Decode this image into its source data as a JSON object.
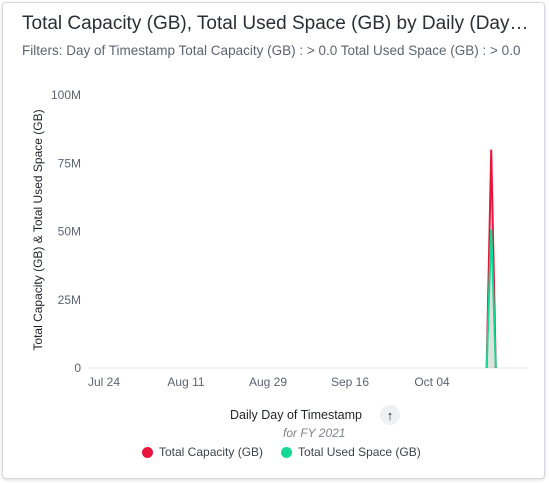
{
  "title": "Total Capacity (GB), Total Used Space (GB) by Daily (Day of Timestamp)",
  "filters": "Filters: Day of Timestamp Total Capacity (GB) : > 0.0 Total Used Space (GB) : > 0.0",
  "ylabel": "Total Capacity (GB) & Total Used Space (GB)",
  "xlabel": "Daily Day of Timestamp",
  "xsub": "for FY 2021",
  "sort_icon": "arrow-up-icon",
  "colors": {
    "capacity": "#e8163c",
    "used": "#13d994"
  },
  "chart_data": {
    "type": "line",
    "title": "Total Capacity (GB), Total Used Space (GB) by Daily (Day of Timestamp)",
    "xlabel": "Daily Day of Timestamp",
    "ylabel": "Total Capacity (GB) & Total Used Space (GB)",
    "x_ticks": [
      "Jul 24",
      "Aug 11",
      "Aug 29",
      "Sep 16",
      "Oct 04"
    ],
    "y_ticks": [
      "0",
      "25M",
      "50M",
      "75M",
      "100M"
    ],
    "ylim": [
      0,
      100000000
    ],
    "x": [
      "2021-10-16",
      "2021-10-17",
      "2021-10-18"
    ],
    "series": [
      {
        "name": "Total Capacity (GB)",
        "color": "#e8163c",
        "values": [
          0,
          80000000,
          0
        ]
      },
      {
        "name": "Total Used Space (GB)",
        "color": "#13d994",
        "values": [
          0,
          51000000,
          0
        ]
      }
    ],
    "legend_position": "bottom",
    "grid": false
  }
}
